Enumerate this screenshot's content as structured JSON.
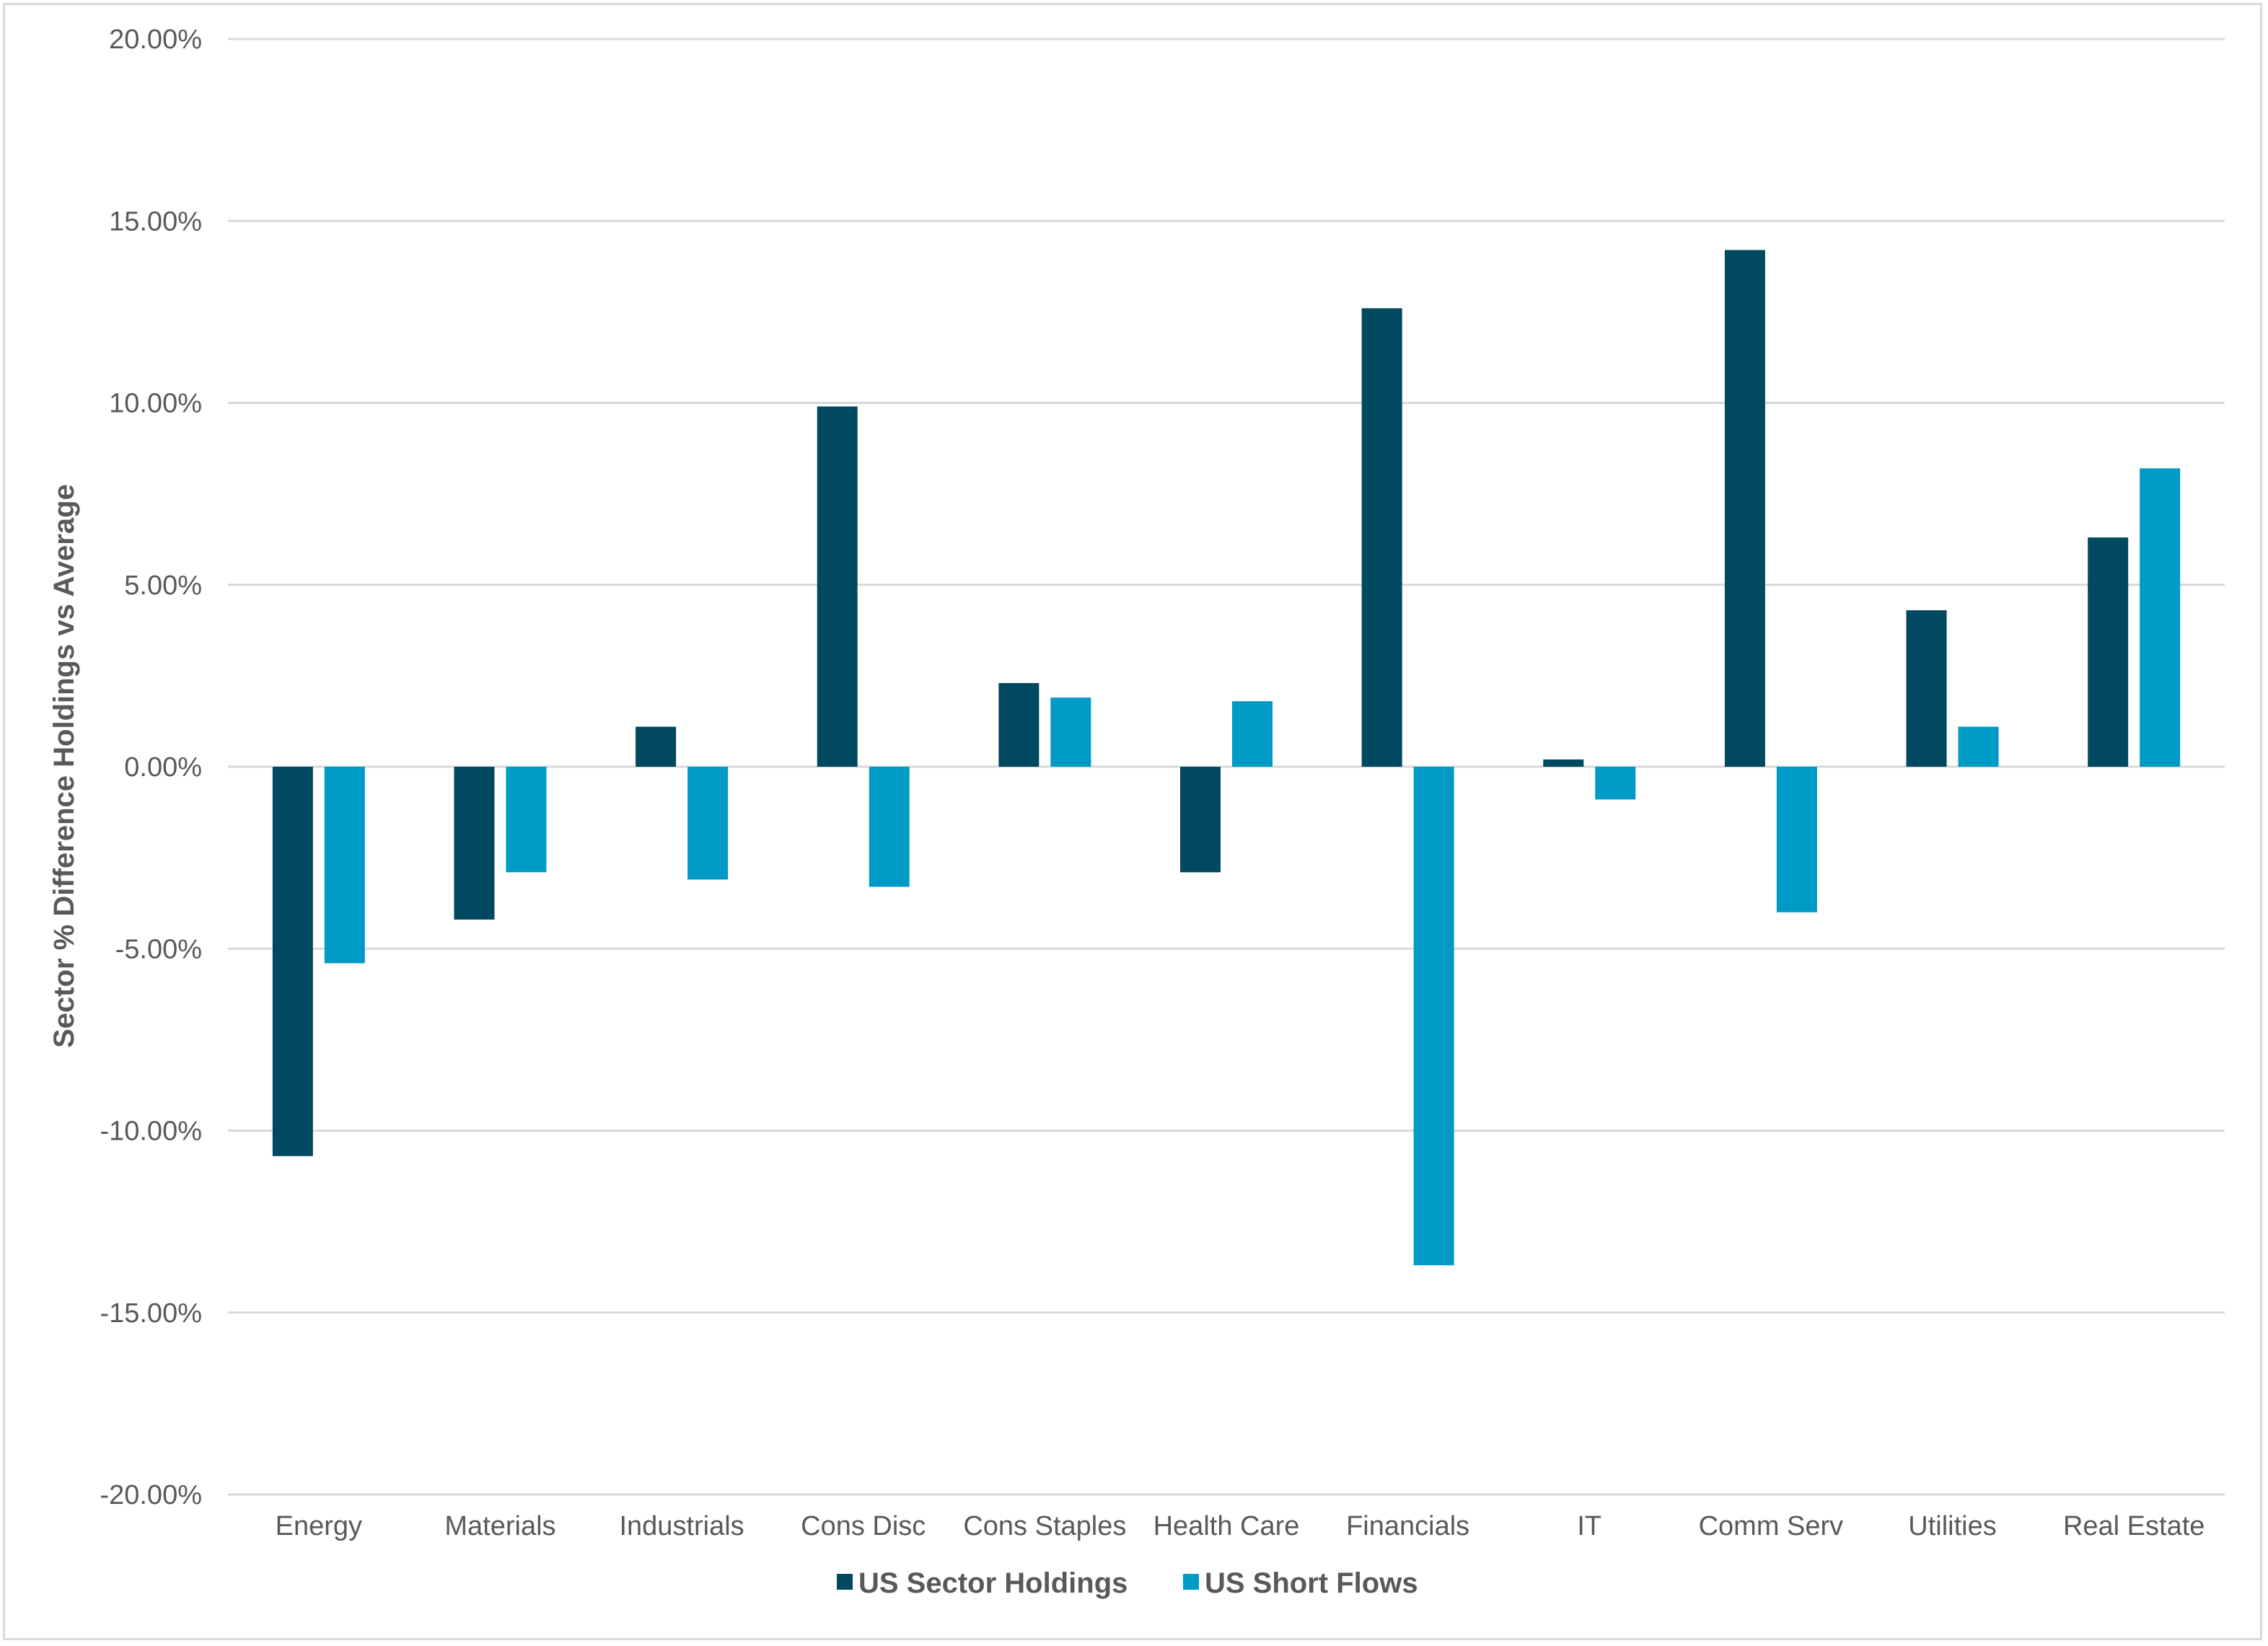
{
  "chart_data": {
    "type": "bar",
    "title": "",
    "xlabel": "",
    "ylabel": "Sector % Difference Holdings vs Average",
    "ylim": [
      -20,
      20
    ],
    "yticks": [
      20,
      15,
      10,
      5,
      0,
      -5,
      -10,
      -15,
      -20
    ],
    "ytick_labels": [
      "20.00%",
      "15.00%",
      "10.00%",
      "5.00%",
      "0.00%",
      "-5.00%",
      "-10.00%",
      "-15.00%",
      "-20.00%"
    ],
    "grid": true,
    "legend": "bottom",
    "categories": [
      "Energy",
      "Materials",
      "Industrials",
      "Cons Disc",
      "Cons Staples",
      "Health Care",
      "Financials",
      "IT",
      "Comm Serv",
      "Utilities",
      "Real Estate"
    ],
    "series": [
      {
        "name": "US Sector Holdings",
        "color": "#004960",
        "values": [
          -10.7,
          -4.2,
          1.1,
          9.9,
          2.3,
          -2.9,
          12.6,
          0.2,
          14.2,
          4.3,
          6.3
        ]
      },
      {
        "name": "US Short Flows",
        "color": "#009ac7",
        "values": [
          -5.4,
          -2.9,
          -3.1,
          -3.3,
          1.9,
          1.8,
          -13.7,
          -0.9,
          -4.0,
          1.1,
          8.2
        ]
      }
    ]
  }
}
